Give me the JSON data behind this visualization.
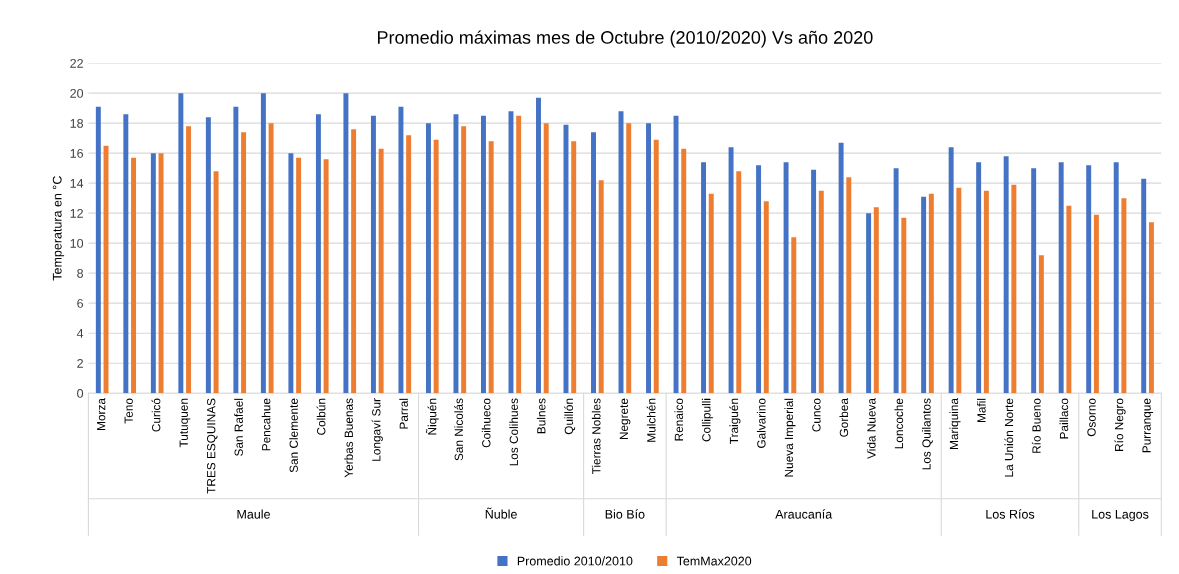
{
  "chart_data": {
    "type": "bar",
    "title": "Promedio máximas mes de Octubre (2010/2020) Vs año 2020",
    "ylabel": "Temperatura en °C",
    "categories": [
      "Morza",
      "Teno",
      "Curicó",
      "Tutuquen",
      "TRES ESQUINAS",
      "San Rafael",
      "Pencahue",
      "San Clemente",
      "Colbún",
      "Yerbas Buenas",
      "Longaví Sur",
      "Parral",
      "Ñiquén",
      "San Nicolás",
      "Coihueco",
      "Los Colihues",
      "Bulnes",
      "Quillón",
      "Tierras Nobles",
      "Negrete",
      "Mulchén",
      "Renaico",
      "Collipulli",
      "Traiguén",
      "Galvarino",
      "Nueva Imperial",
      "Cunco",
      "Gorbea",
      "Vida Nueva",
      "Loncoche",
      "Los Quilantos",
      "Mariquina",
      "Mafil",
      "La Unión Norte",
      "Río Bueno",
      "Paillaco",
      "Osorno",
      "Río Negro",
      "Purranque"
    ],
    "series": [
      {
        "name": "Promedio 2010/2010",
        "color": "#4472c4",
        "values": [
          19.1,
          18.6,
          16.0,
          20.0,
          18.4,
          19.1,
          20.0,
          16.0,
          18.6,
          20.0,
          18.5,
          19.1,
          18.0,
          18.6,
          18.5,
          18.8,
          19.7,
          17.9,
          17.4,
          18.8,
          18.0,
          18.5,
          15.4,
          16.4,
          15.2,
          15.4,
          14.9,
          16.7,
          12.0,
          15.0,
          13.1,
          16.4,
          15.4,
          15.8,
          15.0,
          15.4,
          15.2,
          15.4,
          14.3
        ]
      },
      {
        "name": "TemMax2020",
        "color": "#ed7d31",
        "values": [
          16.5,
          15.7,
          16.0,
          17.8,
          14.8,
          17.4,
          18.0,
          15.7,
          15.6,
          17.6,
          16.3,
          17.2,
          16.9,
          17.8,
          16.8,
          18.5,
          18.0,
          16.8,
          14.2,
          18.0,
          16.9,
          16.3,
          13.3,
          14.8,
          12.8,
          10.4,
          13.5,
          14.4,
          12.4,
          11.7,
          13.3,
          13.7,
          13.5,
          13.9,
          9.2,
          12.5,
          11.9,
          13.0,
          11.4
        ]
      }
    ],
    "annotations": [
      "Maule",
      "Ñuble",
      "Bio Bío",
      "Araucanía",
      "Los Ríos",
      "Los Lagos"
    ],
    "ylim": [
      0,
      22
    ],
    "yticks": [
      0,
      2,
      4,
      6,
      8,
      10,
      12,
      14,
      16,
      18,
      20,
      22
    ],
    "grid": "y",
    "legend": "bottom"
  }
}
